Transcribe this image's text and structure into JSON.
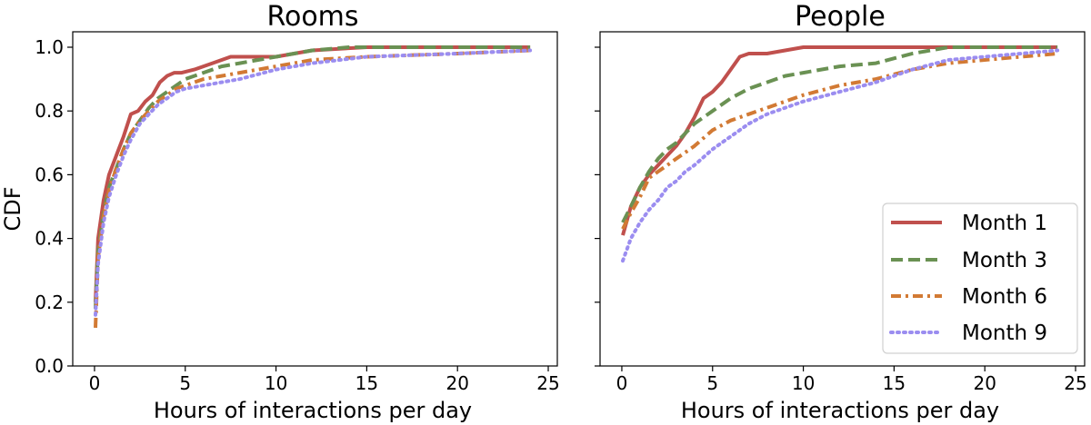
{
  "chart_data": [
    {
      "type": "line",
      "title": "Rooms",
      "xlabel": "Hours of interactions per day",
      "ylabel": "CDF",
      "xlim": [
        -1.2,
        25.5
      ],
      "ylim": [
        0.0,
        1.0
      ],
      "xticks": [
        "0",
        "5",
        "10",
        "15",
        "20",
        "25"
      ],
      "yticks": [
        "0.0",
        "0.2",
        "0.4",
        "0.6",
        "0.8",
        "1.0"
      ],
      "series": [
        {
          "name": "Month 1",
          "x": [
            0.05,
            0.2,
            0.5,
            0.8,
            1.2,
            1.6,
            2.0,
            2.4,
            2.8,
            3.2,
            3.6,
            4.0,
            4.4,
            4.8,
            5.5,
            6.5,
            7.5,
            10.0,
            11.0,
            12.0,
            15.0,
            20.0,
            24.0
          ],
          "y": [
            0.2,
            0.4,
            0.52,
            0.6,
            0.66,
            0.72,
            0.79,
            0.8,
            0.83,
            0.85,
            0.89,
            0.91,
            0.92,
            0.92,
            0.93,
            0.95,
            0.97,
            0.97,
            0.98,
            0.99,
            1.0,
            1.0,
            1.0
          ]
        },
        {
          "name": "Month 3",
          "x": [
            0.05,
            0.2,
            0.5,
            0.8,
            1.2,
            1.6,
            2.0,
            2.5,
            3.0,
            3.5,
            4.0,
            4.5,
            5.0,
            6.0,
            7.0,
            8.0,
            10.0,
            12.0,
            14.0,
            20.0,
            24.0
          ],
          "y": [
            0.18,
            0.36,
            0.48,
            0.56,
            0.62,
            0.68,
            0.73,
            0.77,
            0.81,
            0.84,
            0.86,
            0.88,
            0.9,
            0.92,
            0.94,
            0.95,
            0.97,
            0.99,
            1.0,
            1.0,
            1.0
          ]
        },
        {
          "name": "Month 6",
          "x": [
            0.05,
            0.2,
            0.5,
            0.8,
            1.2,
            1.6,
            2.0,
            2.5,
            3.0,
            3.5,
            4.0,
            4.5,
            5.0,
            6.0,
            7.0,
            8.0,
            10.0,
            12.0,
            15.0,
            20.0,
            24.0
          ],
          "y": [
            0.12,
            0.34,
            0.47,
            0.55,
            0.62,
            0.68,
            0.73,
            0.77,
            0.8,
            0.83,
            0.85,
            0.87,
            0.88,
            0.9,
            0.91,
            0.92,
            0.94,
            0.96,
            0.97,
            0.98,
            0.99
          ]
        },
        {
          "name": "Month 9",
          "x": [
            0.05,
            0.2,
            0.5,
            0.8,
            1.2,
            1.6,
            2.0,
            2.5,
            3.0,
            3.5,
            4.0,
            4.5,
            5.0,
            6.0,
            7.0,
            8.0,
            10.0,
            12.0,
            15.0,
            20.0,
            24.0
          ],
          "y": [
            0.16,
            0.32,
            0.45,
            0.53,
            0.6,
            0.66,
            0.71,
            0.76,
            0.79,
            0.82,
            0.84,
            0.86,
            0.87,
            0.88,
            0.89,
            0.9,
            0.93,
            0.95,
            0.97,
            0.98,
            0.99
          ]
        }
      ]
    },
    {
      "type": "line",
      "title": "People",
      "xlabel": "Hours of interactions per day",
      "ylabel": "",
      "xlim": [
        -1.2,
        25.5
      ],
      "ylim": [
        0.0,
        1.0
      ],
      "xticks": [
        "0",
        "5",
        "10",
        "15",
        "20",
        "25"
      ],
      "yticks": [
        "",
        "",
        "",
        "",
        "",
        ""
      ],
      "legend": "lower-right",
      "series": [
        {
          "name": "Month 1",
          "x": [
            0.05,
            0.5,
            1.0,
            1.5,
            2.0,
            2.5,
            3.0,
            3.5,
            4.0,
            4.5,
            5.0,
            5.5,
            6.0,
            6.5,
            7.0,
            8.0,
            9.0,
            10.0,
            12.0,
            15.0,
            20.0,
            24.0
          ],
          "y": [
            0.41,
            0.5,
            0.56,
            0.6,
            0.63,
            0.66,
            0.69,
            0.73,
            0.78,
            0.84,
            0.86,
            0.89,
            0.93,
            0.97,
            0.98,
            0.98,
            0.99,
            1.0,
            1.0,
            1.0,
            1.0,
            1.0
          ]
        },
        {
          "name": "Month 3",
          "x": [
            0.05,
            0.5,
            1.0,
            1.5,
            2.0,
            2.5,
            3.0,
            3.5,
            4.0,
            4.5,
            5.0,
            6.0,
            7.0,
            8.0,
            9.0,
            10.0,
            12.0,
            14.0,
            16.0,
            18.0,
            20.0,
            24.0
          ],
          "y": [
            0.45,
            0.5,
            0.56,
            0.61,
            0.65,
            0.68,
            0.7,
            0.73,
            0.76,
            0.78,
            0.8,
            0.84,
            0.87,
            0.89,
            0.91,
            0.92,
            0.94,
            0.95,
            0.98,
            1.0,
            1.0,
            1.0
          ]
        },
        {
          "name": "Month 6",
          "x": [
            0.05,
            0.5,
            1.0,
            1.5,
            2.0,
            2.5,
            3.0,
            3.5,
            4.0,
            5.0,
            6.0,
            7.0,
            8.0,
            9.0,
            10.0,
            12.0,
            14.0,
            16.0,
            18.0,
            20.0,
            22.0,
            24.0
          ],
          "y": [
            0.43,
            0.48,
            0.53,
            0.59,
            0.61,
            0.63,
            0.65,
            0.67,
            0.69,
            0.74,
            0.77,
            0.79,
            0.81,
            0.83,
            0.85,
            0.88,
            0.9,
            0.93,
            0.95,
            0.96,
            0.97,
            0.98
          ]
        },
        {
          "name": "Month 9",
          "x": [
            0.05,
            0.5,
            1.0,
            1.5,
            2.0,
            2.5,
            3.0,
            3.5,
            4.0,
            5.0,
            6.0,
            7.0,
            8.0,
            9.0,
            10.0,
            12.0,
            14.0,
            16.0,
            18.0,
            20.0,
            22.0,
            24.0
          ],
          "y": [
            0.33,
            0.4,
            0.45,
            0.49,
            0.52,
            0.56,
            0.58,
            0.61,
            0.63,
            0.68,
            0.72,
            0.76,
            0.79,
            0.81,
            0.83,
            0.86,
            0.89,
            0.93,
            0.96,
            0.97,
            0.98,
            0.99
          ]
        }
      ]
    }
  ],
  "series_styles": [
    {
      "color": "#c0504d",
      "dash": "",
      "width": 4.0
    },
    {
      "color": "#6a9153",
      "dash": "13 6",
      "width": 4.0
    },
    {
      "color": "#d27a34",
      "dash": "11 5 3 5",
      "width": 4.0
    },
    {
      "color": "#9b8df0",
      "dash": "2 5",
      "width": 4.0
    }
  ]
}
